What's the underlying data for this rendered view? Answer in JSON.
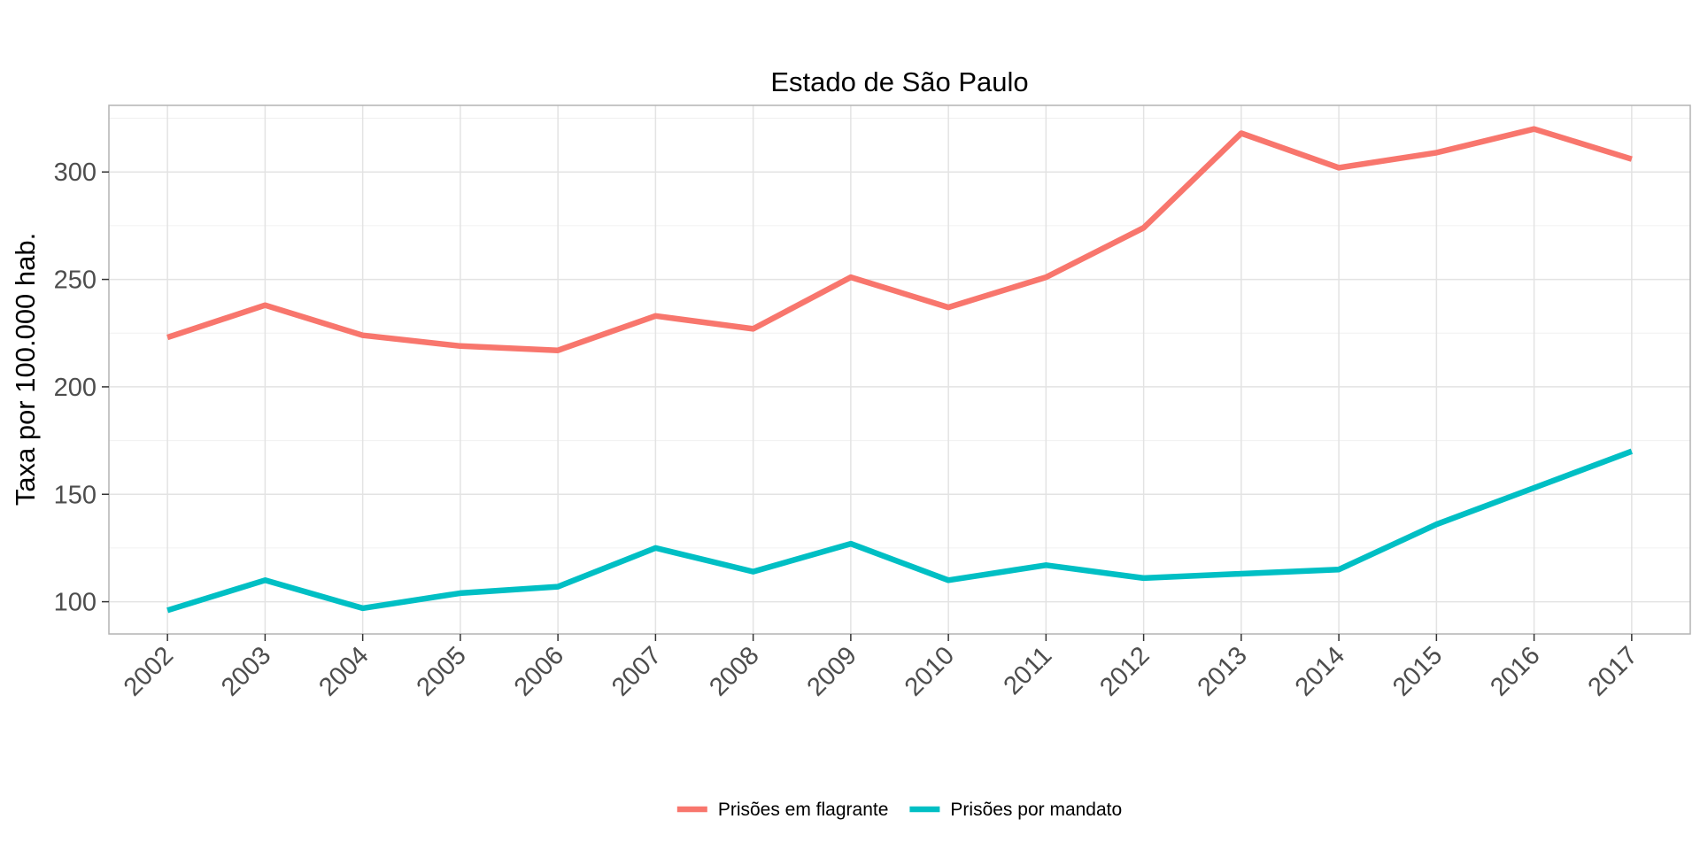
{
  "chart_data": {
    "type": "line",
    "title": "Estado de São Paulo",
    "xlabel": "",
    "ylabel": "Taxa por 100.000 hab.",
    "x": [
      "2002",
      "2003",
      "2004",
      "2005",
      "2006",
      "2007",
      "2008",
      "2009",
      "2010",
      "2011",
      "2012",
      "2013",
      "2014",
      "2015",
      "2016",
      "2017"
    ],
    "y_ticks": [
      100,
      150,
      200,
      250,
      300
    ],
    "ylim": [
      85,
      331
    ],
    "grid": true,
    "legend_position": "bottom",
    "series": [
      {
        "name": "Prisões em flagrante",
        "color": "#F8766D",
        "values": [
          223,
          238,
          224,
          219,
          217,
          233,
          227,
          251,
          237,
          251,
          274,
          318,
          302,
          309,
          320,
          306
        ]
      },
      {
        "name": "Prisões por mandato",
        "color": "#00BFC4",
        "values": [
          96,
          110,
          97,
          104,
          107,
          125,
          114,
          127,
          110,
          117,
          111,
          113,
          115,
          136,
          153,
          170
        ]
      }
    ]
  }
}
